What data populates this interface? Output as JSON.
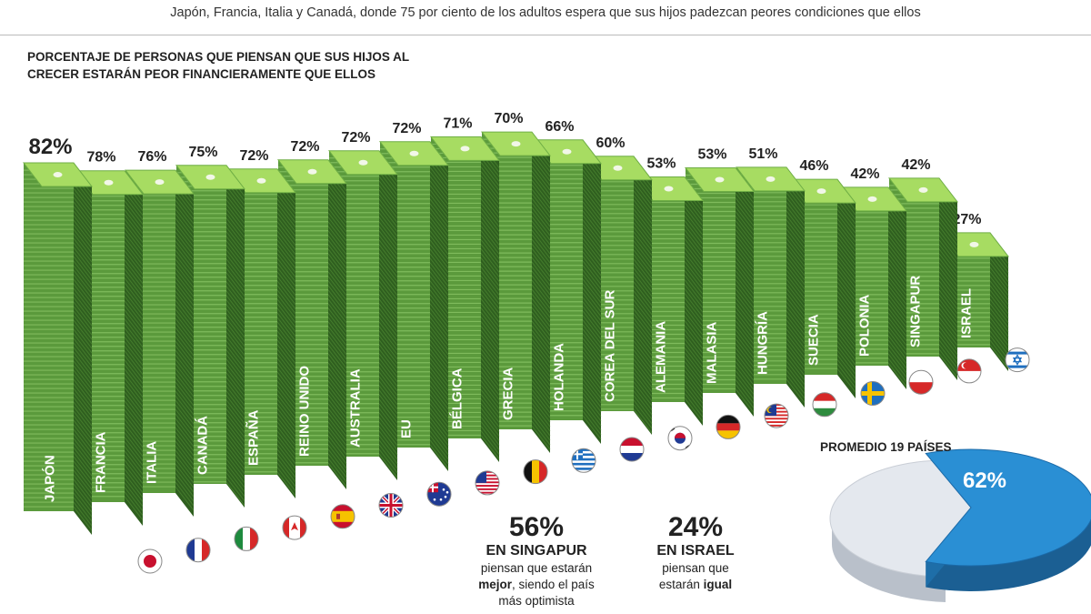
{
  "intro_text": "Japón, Francia, Italia y  Canadá, donde 75 por ciento de los adultos espera que sus hijos padezcan peores condiciones que ellos",
  "chart_title": "PORCENTAJE DE PERSONAS QUE PIENSAN QUE SUS HIJOS AL CRECER ESTARÁN PEOR FINANCIERAMENTE QUE ELLOS",
  "chart_data": {
    "type": "bar",
    "title": "PORCENTAJE DE PERSONAS QUE PIENSAN QUE SUS HIJOS AL CRECER ESTARÁN PEOR FINANCIERAMENTE QUE ELLOS",
    "unit": "%",
    "ylim": [
      0,
      100
    ],
    "categories": [
      "JAPÓN",
      "FRANCIA",
      "ITALIA",
      "CANADÁ",
      "ESPAÑA",
      "REINO UNIDO",
      "AUSTRALIA",
      "EU",
      "BÉLGICA",
      "GRECIA",
      "HOLANDA",
      "COREA DEL SUR",
      "ALEMANIA",
      "MALASIA",
      "HUNGRÍA",
      "SUECIA",
      "POLONIA",
      "SINGAPUR",
      "ISRAEL"
    ],
    "values": [
      82,
      78,
      76,
      75,
      72,
      72,
      72,
      72,
      71,
      70,
      66,
      60,
      53,
      53,
      51,
      46,
      42,
      42,
      27
    ],
    "labels": [
      "82%",
      "78%",
      "76%",
      "75%",
      "72%",
      "72%",
      "72%",
      "72%",
      "71%",
      "70%",
      "66%",
      "60%",
      "53%",
      "53%",
      "51%",
      "46%",
      "42%",
      "42%",
      "27%"
    ]
  },
  "flags": [
    "japan-flag",
    "france-flag",
    "italy-flag",
    "canada-flag",
    "spain-flag",
    "uk-flag",
    "australia-flag",
    "usa-flag",
    "belgium-flag",
    "greece-flag",
    "netherlands-flag",
    "south-korea-flag",
    "germany-flag",
    "malaysia-flag",
    "hungary-flag",
    "sweden-flag",
    "poland-flag",
    "singapore-flag",
    "israel-flag"
  ],
  "singapore_stat": {
    "value": "56%",
    "subtitle": "EN SINGAPUR",
    "line1": "piensan que estarán",
    "bold": "mejor",
    "line2_rest": ", siendo el país",
    "line3": "más optimista"
  },
  "israel_stat": {
    "value": "24%",
    "subtitle": "EN ISRAEL",
    "line1": "piensan que",
    "line2_pre": "estarán ",
    "bold": "igual"
  },
  "pie": {
    "title": "PROMEDIO 19 PAÍSES",
    "value": 62,
    "label": "62%",
    "color": "#2a8fd4",
    "rest_color": "#e4e8ee"
  },
  "colors": {
    "bar_front": "#5b9a3c",
    "bar_side": "#2f5f1f",
    "bar_top": "#a7dc62"
  }
}
